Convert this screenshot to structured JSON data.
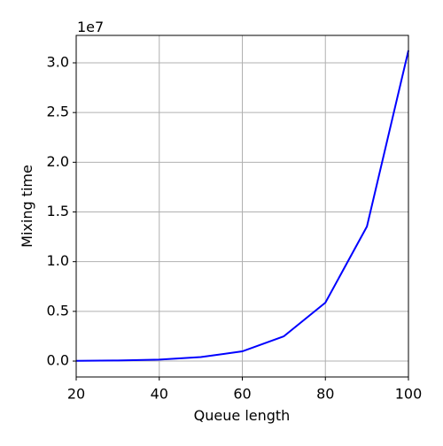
{
  "chart_data": {
    "type": "line",
    "x_label": "Queue length",
    "y_label": "Mixing time",
    "y_offset_label": "1e7",
    "x": [
      20,
      30,
      40,
      50,
      60,
      70,
      80,
      90,
      100
    ],
    "series": [
      {
        "color": "#0000ff",
        "values": [
          0.003,
          0.006,
          0.015,
          0.04,
          0.098,
          0.249,
          0.588,
          1.353,
          3.125
        ]
      }
    ],
    "xlim": [
      20,
      100
    ],
    "xticks": [
      20,
      40,
      60,
      80,
      100
    ],
    "ylim": [
      -0.16,
      3.276
    ],
    "yticks": [
      {
        "value": 0,
        "label": "0.0"
      },
      {
        "value": 0.5,
        "label": "0.5"
      },
      {
        "value": 1,
        "label": "1.0"
      },
      {
        "value": 1.5,
        "label": "1.5"
      },
      {
        "value": 2,
        "label": "2.0"
      },
      {
        "value": 2.5,
        "label": "2.5"
      },
      {
        "value": 3,
        "label": "3.0"
      }
    ],
    "grid": true
  }
}
